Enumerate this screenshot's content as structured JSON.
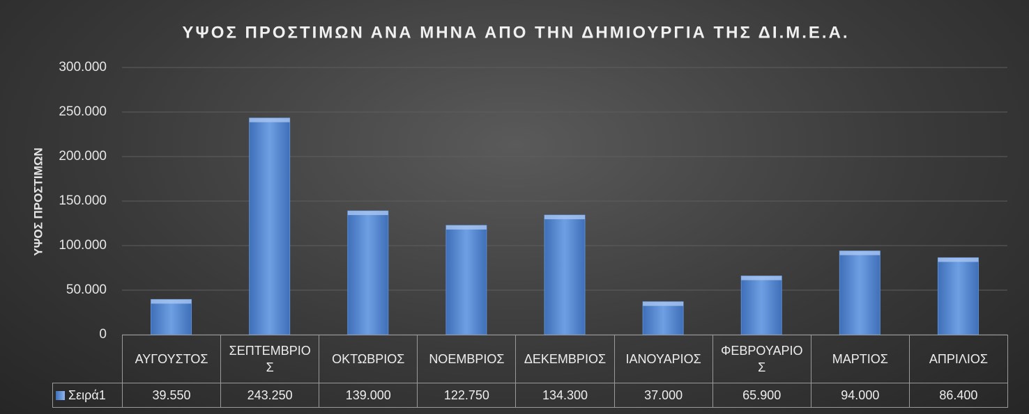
{
  "chart_data": {
    "type": "bar",
    "title": "ΥΨΟΣ ΠΡΟΣΤΙΜΩΝ  ΑΝΑ ΜΗΝΑ ΑΠΟ  ΤΗΝ ΔΗΜΙΟΥΡΓΙΑ ΤΗΣ ΔΙ.Μ.Ε.Α.",
    "y_label": "ΥΨΟΣ ΠΡΟΣΤΙΜΩΝ",
    "categories": [
      "ΑΥΓΟΥΣΤΟΣ",
      "ΣΕΠΤΕΜΒΡΙΟΣ",
      "ΟΚΤΩΒΡΙΟΣ",
      "ΝΟΕΜΒΡΙΟΣ",
      "ΔΕΚΕΜΒΡΙΟΣ",
      "ΙΑΝΟΥΑΡΙΟΣ",
      "ΦΕΒΡΟΥΑΡΙΟΣ",
      "ΜΑΡΤΙΟΣ",
      "ΑΠΡΙΛΙΟΣ"
    ],
    "series": [
      {
        "name": "Σειρά1",
        "color": "#5b8fd6",
        "values": [
          39550,
          243250,
          139000,
          122750,
          134300,
          37000,
          65900,
          94000,
          86400
        ],
        "value_labels": [
          "39.550",
          "243.250",
          "139.000",
          "122.750",
          "134.300",
          "37.000",
          "65.900",
          "94.000",
          "86.400"
        ]
      }
    ],
    "ylim": [
      0,
      300000
    ],
    "yticks": [
      0,
      {
        "value": 50000,
        "label": "50.000"
      },
      {
        "value": 100000,
        "label": "100.000"
      },
      {
        "value": 150000,
        "label": "150.000"
      },
      {
        "value": 200000,
        "label": "200.000"
      },
      {
        "value": 250000,
        "label": "250.000"
      },
      {
        "value": 300000,
        "label": "300.000"
      }
    ],
    "grid": true,
    "legend": "data-table"
  }
}
